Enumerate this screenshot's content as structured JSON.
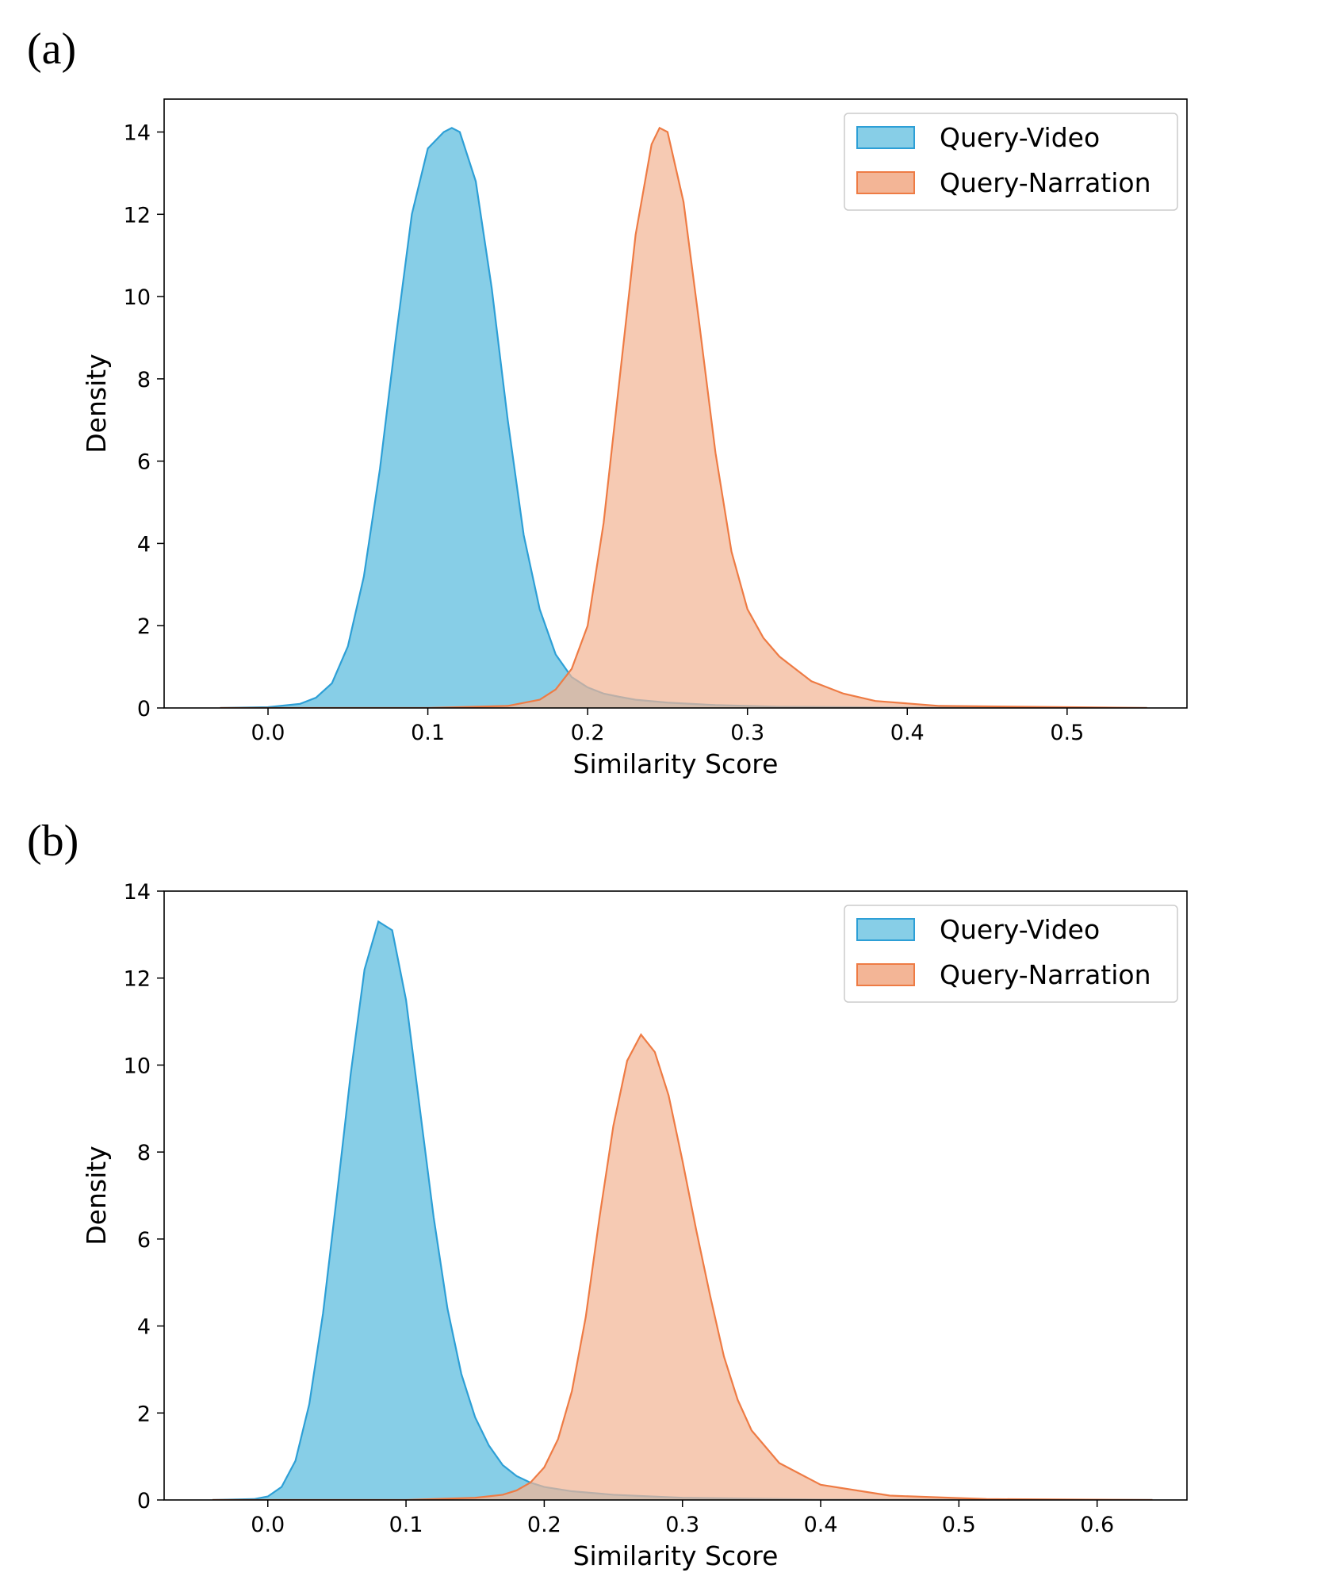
{
  "panels": [
    {
      "label": "(a)"
    },
    {
      "label": "(b)"
    }
  ],
  "colors": {
    "video_fill": "#87CEE7",
    "video_edge": "#2D9FD6",
    "narration_fill": "#F3B596",
    "narration_edge": "#EE7B44",
    "overlap_fill": "#A18A80"
  },
  "chart_data": [
    {
      "type": "area",
      "title": "",
      "xlabel": "Similarity Score",
      "ylabel": "Density",
      "xlim": [
        -0.065,
        0.575
      ],
      "ylim": [
        0,
        14.8
      ],
      "xticks": [
        0.0,
        0.1,
        0.2,
        0.3,
        0.4,
        0.5
      ],
      "xtick_labels": [
        "0.0",
        "0.1",
        "0.2",
        "0.3",
        "0.4",
        "0.5"
      ],
      "yticks": [
        0,
        2,
        4,
        6,
        8,
        10,
        12,
        14
      ],
      "ytick_labels": [
        "0",
        "2",
        "4",
        "6",
        "8",
        "10",
        "12",
        "14"
      ],
      "legend_position": "top-right",
      "series": [
        {
          "name": "Query-Video",
          "x": [
            -0.03,
            0.0,
            0.02,
            0.03,
            0.04,
            0.05,
            0.06,
            0.07,
            0.08,
            0.09,
            0.1,
            0.11,
            0.115,
            0.12,
            0.13,
            0.14,
            0.15,
            0.16,
            0.17,
            0.18,
            0.19,
            0.2,
            0.21,
            0.22,
            0.23,
            0.25,
            0.28,
            0.32,
            0.4,
            0.55
          ],
          "values": [
            0.0,
            0.02,
            0.1,
            0.25,
            0.6,
            1.5,
            3.2,
            5.8,
            9.0,
            12.0,
            13.6,
            14.0,
            14.1,
            14.0,
            12.8,
            10.2,
            7.0,
            4.2,
            2.4,
            1.3,
            0.75,
            0.5,
            0.35,
            0.27,
            0.2,
            0.13,
            0.07,
            0.03,
            0.01,
            0.0
          ]
        },
        {
          "name": "Query-Narration",
          "x": [
            -0.03,
            0.1,
            0.15,
            0.17,
            0.18,
            0.19,
            0.2,
            0.21,
            0.22,
            0.23,
            0.24,
            0.245,
            0.25,
            0.26,
            0.27,
            0.28,
            0.29,
            0.3,
            0.31,
            0.32,
            0.33,
            0.34,
            0.36,
            0.38,
            0.42,
            0.55
          ],
          "values": [
            0.0,
            0.0,
            0.05,
            0.2,
            0.45,
            0.95,
            2.0,
            4.5,
            8.0,
            11.5,
            13.7,
            14.1,
            14.0,
            12.3,
            9.3,
            6.2,
            3.8,
            2.4,
            1.7,
            1.25,
            0.95,
            0.65,
            0.35,
            0.17,
            0.05,
            0.0
          ]
        }
      ]
    },
    {
      "type": "area",
      "title": "",
      "xlabel": "Similarity Score",
      "ylabel": "Density",
      "xlim": [
        -0.075,
        0.665
      ],
      "ylim": [
        0,
        14.0
      ],
      "xticks": [
        0.0,
        0.1,
        0.2,
        0.3,
        0.4,
        0.5,
        0.6
      ],
      "xtick_labels": [
        "0.0",
        "0.1",
        "0.2",
        "0.3",
        "0.4",
        "0.5",
        "0.6"
      ],
      "yticks": [
        0,
        2,
        4,
        6,
        8,
        10,
        12,
        14
      ],
      "ytick_labels": [
        "0",
        "2",
        "4",
        "6",
        "8",
        "10",
        "12",
        "14"
      ],
      "legend_position": "top-right",
      "series": [
        {
          "name": "Query-Video",
          "x": [
            -0.04,
            -0.01,
            0.0,
            0.01,
            0.02,
            0.03,
            0.04,
            0.05,
            0.06,
            0.07,
            0.08,
            0.09,
            0.1,
            0.11,
            0.12,
            0.13,
            0.14,
            0.15,
            0.16,
            0.17,
            0.18,
            0.19,
            0.2,
            0.22,
            0.25,
            0.3,
            0.4,
            0.64
          ],
          "values": [
            0.0,
            0.02,
            0.08,
            0.3,
            0.9,
            2.2,
            4.3,
            7.0,
            9.8,
            12.2,
            13.3,
            13.1,
            11.5,
            9.0,
            6.5,
            4.4,
            2.9,
            1.9,
            1.25,
            0.8,
            0.55,
            0.4,
            0.3,
            0.2,
            0.12,
            0.05,
            0.01,
            0.0
          ]
        },
        {
          "name": "Query-Narration",
          "x": [
            -0.04,
            0.1,
            0.15,
            0.17,
            0.18,
            0.19,
            0.2,
            0.21,
            0.22,
            0.23,
            0.24,
            0.25,
            0.26,
            0.27,
            0.28,
            0.29,
            0.3,
            0.31,
            0.32,
            0.33,
            0.34,
            0.35,
            0.37,
            0.4,
            0.45,
            0.52,
            0.64
          ],
          "values": [
            0.0,
            0.0,
            0.05,
            0.12,
            0.22,
            0.4,
            0.75,
            1.4,
            2.5,
            4.2,
            6.5,
            8.6,
            10.1,
            10.7,
            10.3,
            9.3,
            7.8,
            6.2,
            4.7,
            3.3,
            2.3,
            1.6,
            0.85,
            0.35,
            0.1,
            0.02,
            0.0
          ]
        }
      ]
    }
  ]
}
